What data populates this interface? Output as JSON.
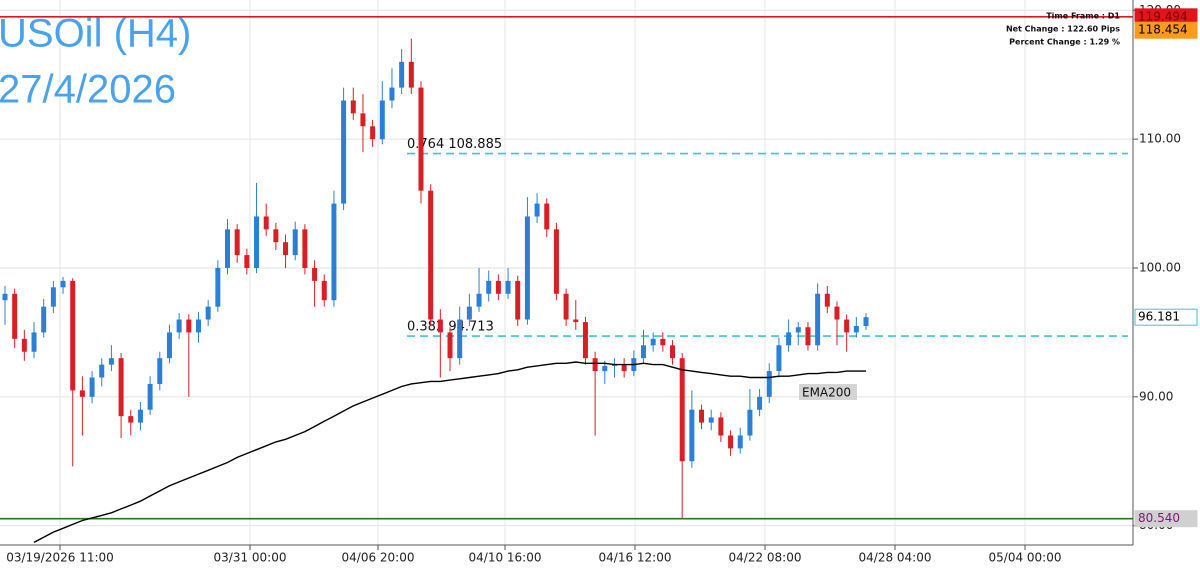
{
  "chart_data": {
    "type": "candlestick",
    "title": "USOil (H4)",
    "subtitle": "27/4/2026",
    "info": [
      "Time Frame : D1",
      "Net Change : 122.60 Pips",
      "Percent Change : 1.29 %"
    ],
    "ylim": [
      78.5,
      120.8
    ],
    "yticks": [
      {
        "value": 80,
        "label": "80.00"
      },
      {
        "value": 90,
        "label": "90.00"
      },
      {
        "value": 100,
        "label": "100.00"
      },
      {
        "value": 110,
        "label": "110.00"
      },
      {
        "value": 120,
        "label": "120.00"
      }
    ],
    "grid": true,
    "x_labels": [
      "03/19/2026 11:00",
      "03/31 00:00",
      "04/06 20:00",
      "04/10 16:00",
      "04/16 12:00",
      "04/22 08:00",
      "04/28 04:00",
      "05/04 00:00"
    ],
    "up_color": "#2b7fd6",
    "down_color": "#d81f26",
    "candles": [
      [
        97.5,
        98.6,
        95.6,
        98.0
      ],
      [
        98.0,
        98.4,
        93.8,
        94.5
      ],
      [
        94.5,
        95.2,
        92.8,
        93.5
      ],
      [
        93.5,
        95.8,
        93.0,
        95.0
      ],
      [
        95.0,
        97.6,
        94.6,
        97.0
      ],
      [
        97.0,
        99.0,
        96.5,
        98.5
      ],
      [
        98.5,
        99.3,
        98.0,
        99.0
      ],
      [
        99.0,
        99.2,
        84.6,
        90.5
      ],
      [
        90.5,
        91.6,
        87.0,
        90.0
      ],
      [
        90.0,
        92.0,
        89.5,
        91.5
      ],
      [
        91.5,
        93.0,
        90.8,
        92.5
      ],
      [
        92.5,
        94.0,
        92.0,
        93.0
      ],
      [
        93.0,
        93.4,
        86.8,
        88.5
      ],
      [
        88.5,
        89.0,
        87.0,
        88.0
      ],
      [
        88.0,
        89.6,
        87.4,
        89.0
      ],
      [
        89.0,
        91.6,
        88.6,
        91.0
      ],
      [
        91.0,
        93.5,
        90.5,
        93.0
      ],
      [
        93.0,
        95.6,
        92.6,
        95.0
      ],
      [
        95.0,
        96.5,
        94.5,
        96.0
      ],
      [
        96.0,
        96.4,
        90.0,
        95.0
      ],
      [
        95.0,
        96.6,
        94.2,
        96.0
      ],
      [
        96.0,
        97.5,
        95.5,
        97.0
      ],
      [
        97.0,
        100.6,
        96.6,
        100.0
      ],
      [
        100.0,
        103.8,
        99.5,
        103.0
      ],
      [
        103.0,
        103.4,
        100.4,
        101.0
      ],
      [
        101.0,
        101.5,
        99.5,
        100.0
      ],
      [
        100.0,
        106.6,
        99.6,
        104.0
      ],
      [
        104.0,
        105.0,
        102.5,
        103.0
      ],
      [
        103.0,
        103.5,
        101.4,
        102.0
      ],
      [
        102.0,
        102.6,
        100.0,
        101.0
      ],
      [
        101.0,
        103.6,
        100.6,
        103.0
      ],
      [
        103.0,
        103.4,
        99.5,
        100.0
      ],
      [
        100.0,
        100.6,
        97.0,
        99.0
      ],
      [
        99.0,
        99.5,
        97.0,
        97.5
      ],
      [
        97.5,
        106.0,
        97.0,
        105.0
      ],
      [
        105.0,
        114.0,
        104.5,
        113.0
      ],
      [
        113.0,
        114.0,
        111.5,
        112.0
      ],
      [
        112.0,
        113.5,
        109.0,
        111.0
      ],
      [
        111.0,
        111.5,
        109.4,
        110.0
      ],
      [
        110.0,
        114.5,
        109.6,
        113.0
      ],
      [
        113.0,
        115.5,
        112.4,
        114.0
      ],
      [
        114.0,
        117.0,
        113.5,
        116.0
      ],
      [
        116.0,
        117.8,
        113.5,
        114.0
      ],
      [
        114.0,
        114.5,
        105.0,
        106.0
      ],
      [
        106.0,
        106.5,
        95.5,
        96.0
      ],
      [
        96.0,
        96.8,
        91.5,
        95.0
      ],
      [
        95.0,
        95.4,
        92.0,
        93.0
      ],
      [
        93.0,
        97.0,
        92.5,
        96.0
      ],
      [
        96.0,
        98.0,
        95.5,
        97.0
      ],
      [
        97.0,
        100.0,
        96.6,
        98.0
      ],
      [
        98.0,
        99.8,
        97.4,
        99.0
      ],
      [
        99.0,
        99.5,
        97.5,
        98.0
      ],
      [
        98.0,
        100.0,
        97.6,
        99.0
      ],
      [
        99.0,
        99.4,
        95.5,
        96.0
      ],
      [
        96.0,
        105.5,
        95.6,
        104.0
      ],
      [
        104.0,
        105.8,
        103.5,
        105.0
      ],
      [
        105.0,
        105.4,
        102.4,
        103.0
      ],
      [
        103.0,
        103.5,
        97.5,
        98.0
      ],
      [
        98.0,
        98.4,
        95.5,
        96.0
      ],
      [
        96.0,
        97.5,
        95.2,
        95.8
      ],
      [
        95.8,
        96.2,
        92.5,
        93.0
      ],
      [
        93.0,
        93.5,
        87.0,
        92.0
      ],
      [
        92.0,
        92.8,
        91.0,
        92.4
      ],
      [
        92.4,
        93.0,
        91.5,
        92.5
      ],
      [
        92.5,
        93.0,
        91.5,
        92.0
      ],
      [
        92.0,
        93.6,
        91.6,
        93.0
      ],
      [
        93.0,
        95.2,
        92.6,
        94.0
      ],
      [
        94.0,
        95.0,
        93.5,
        94.5
      ],
      [
        94.5,
        95.0,
        93.5,
        94.0
      ],
      [
        94.0,
        94.4,
        92.5,
        93.0
      ],
      [
        93.0,
        93.4,
        80.5,
        85.0
      ],
      [
        85.0,
        90.5,
        84.5,
        89.0
      ],
      [
        89.0,
        89.4,
        87.5,
        88.0
      ],
      [
        88.0,
        89.0,
        87.4,
        88.4
      ],
      [
        88.4,
        88.8,
        86.5,
        87.0
      ],
      [
        87.0,
        87.4,
        85.4,
        86.0
      ],
      [
        86.0,
        87.6,
        85.6,
        87.0
      ],
      [
        87.0,
        90.6,
        86.6,
        89.0
      ],
      [
        89.0,
        90.6,
        88.5,
        90.0
      ],
      [
        90.0,
        92.6,
        89.5,
        92.0
      ],
      [
        92.0,
        94.6,
        91.5,
        94.0
      ],
      [
        94.0,
        96.0,
        93.5,
        95.0
      ],
      [
        95.0,
        95.8,
        94.0,
        95.4
      ],
      [
        95.4,
        95.8,
        93.6,
        94.0
      ],
      [
        94.0,
        98.8,
        93.6,
        98.0
      ],
      [
        98.0,
        98.6,
        96.5,
        97.0
      ],
      [
        97.0,
        97.4,
        94.0,
        96.0
      ],
      [
        96.0,
        96.4,
        93.5,
        95.0
      ],
      [
        95.0,
        96.2,
        94.6,
        95.5
      ],
      [
        95.5,
        96.5,
        95.2,
        96.181
      ]
    ],
    "ema": {
      "name": "EMA200",
      "color": "#000000",
      "values": [
        null,
        null,
        null,
        78.7,
        79.1,
        79.5,
        79.8,
        80.1,
        80.4,
        80.6,
        80.8,
        81.0,
        81.3,
        81.6,
        81.9,
        82.3,
        82.7,
        83.1,
        83.4,
        83.7,
        84.0,
        84.3,
        84.6,
        84.9,
        85.3,
        85.6,
        85.9,
        86.2,
        86.5,
        86.7,
        87.0,
        87.3,
        87.7,
        88.1,
        88.5,
        88.9,
        89.3,
        89.6,
        89.9,
        90.2,
        90.5,
        90.8,
        91.0,
        91.1,
        91.2,
        91.2,
        91.3,
        91.4,
        91.5,
        91.6,
        91.7,
        91.8,
        92.0,
        92.1,
        92.3,
        92.4,
        92.5,
        92.6,
        92.6,
        92.7,
        92.6,
        92.6,
        92.6,
        92.5,
        92.5,
        92.5,
        92.6,
        92.5,
        92.5,
        92.3,
        92.1,
        92.0,
        91.9,
        91.8,
        91.7,
        91.6,
        91.6,
        91.5,
        91.5,
        91.5,
        91.6,
        91.6,
        91.7,
        91.8,
        91.8,
        91.9,
        91.9,
        92.0,
        92.0,
        92.0
      ]
    },
    "levels": [
      {
        "value": 119.494,
        "color": "#e0141e"
      },
      {
        "value": 80.54,
        "color": "#1f7a1f"
      }
    ],
    "fib_color": "#3cc6cf",
    "fib_levels": [
      {
        "value": 108.885,
        "label": "0.764 108.885"
      },
      {
        "value": 94.713,
        "label": "0.382 94.713"
      }
    ],
    "price_labels": [
      {
        "value": 119.494,
        "label": "119.494",
        "color": "#e0141e",
        "text_color": "#7a0000"
      },
      {
        "value": 118.454,
        "label": "118.454",
        "color": "#ff9a1a",
        "text_color": "#000000"
      },
      {
        "value": 96.181,
        "label": "96.181",
        "color": "#ffffff",
        "text_color": "#000000"
      },
      {
        "value": 80.54,
        "label": "80.540",
        "color": "#d0d0d0",
        "text_color": "#7a1a7a"
      }
    ]
  }
}
